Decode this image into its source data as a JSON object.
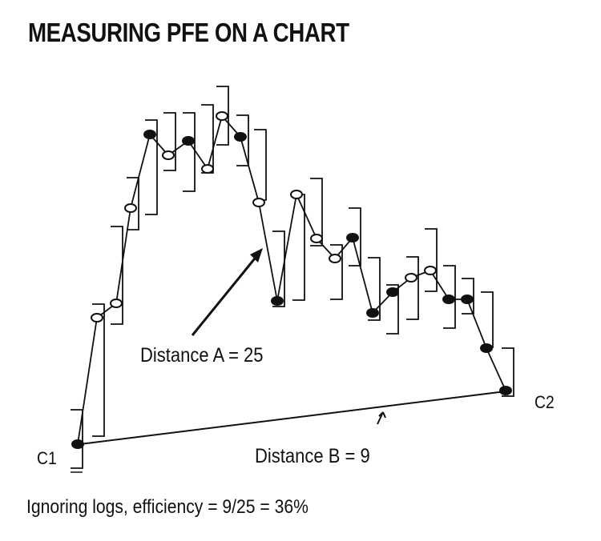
{
  "title": "MEASURING PFE ON A CHART",
  "labels": {
    "distance_a": "Distance A = 25",
    "distance_b": "Distance B = 9",
    "start": "C1",
    "end": "C2",
    "formula": "Ignoring logs, efficiency  = 9/25 = 36%"
  },
  "values": {
    "distance_a": 25,
    "distance_b": 9,
    "efficiency_percent": 36
  },
  "colors": {
    "ink": "#111111",
    "background": "#ffffff"
  }
}
